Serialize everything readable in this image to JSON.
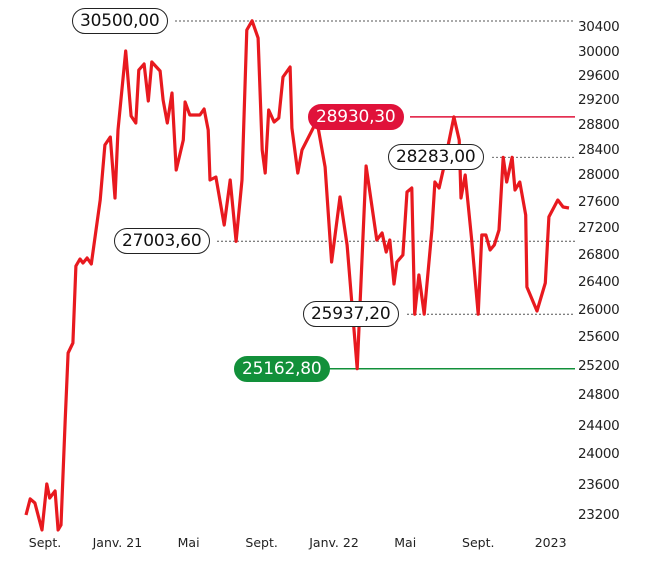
{
  "chart_data": {
    "type": "line",
    "title": "",
    "xlabel": "",
    "ylabel": "",
    "ylim": [
      23200,
      30400
    ],
    "y_ticks": [
      "30400",
      "30000",
      "29600",
      "29200",
      "28800",
      "28400",
      "28000",
      "27600",
      "27200",
      "26800",
      "26400",
      "26000",
      "25600",
      "25200",
      "24800",
      "24400",
      "24000",
      "23600",
      "23200"
    ],
    "x_ticks": [
      {
        "label": "Sept.",
        "date": "2020-09-01"
      },
      {
        "label": "Janv. 21",
        "date": "2021-01-01"
      },
      {
        "label": "Mai",
        "date": "2021-05-01"
      },
      {
        "label": "Sept.",
        "date": "2021-09-01"
      },
      {
        "label": "Janv. 22",
        "date": "2022-01-01"
      },
      {
        "label": "Mai",
        "date": "2022-05-01"
      },
      {
        "label": "Sept.",
        "date": "2022-09-01"
      },
      {
        "label": "2023",
        "date": "2023-01-01"
      }
    ],
    "grid": false,
    "line_color": "#e8191f",
    "series": [
      {
        "points": [
          [
            "2020-07-31",
            23200
          ],
          [
            "2020-08-07",
            23414
          ],
          [
            "2020-08-15",
            23360
          ],
          [
            "2020-08-27",
            23000
          ],
          [
            "2020-09-04",
            23613
          ],
          [
            "2020-09-09",
            23427
          ],
          [
            "2020-09-18",
            23520
          ],
          [
            "2020-09-23",
            23000
          ],
          [
            "2020-09-28",
            23067
          ],
          [
            "2020-10-05",
            24477
          ],
          [
            "2020-10-10",
            25379
          ],
          [
            "2020-10-18",
            25517
          ],
          [
            "2020-10-23",
            26637
          ],
          [
            "2020-10-30",
            26741
          ],
          [
            "2020-11-04",
            26681
          ],
          [
            "2020-11-11",
            26756
          ],
          [
            "2020-11-18",
            26667
          ],
          [
            "2020-12-03",
            27630
          ],
          [
            "2020-12-11",
            28480
          ],
          [
            "2020-12-20",
            28608
          ],
          [
            "2020-12-28",
            27659
          ],
          [
            "2021-01-02",
            28720
          ],
          [
            "2021-01-15",
            30016
          ],
          [
            "2021-01-24",
            28944
          ],
          [
            "2021-02-01",
            28832
          ],
          [
            "2021-02-06",
            29700
          ],
          [
            "2021-02-15",
            29800
          ],
          [
            "2021-02-22",
            29184
          ],
          [
            "2021-02-28",
            29833
          ],
          [
            "2021-03-14",
            29683
          ],
          [
            "2021-03-19",
            29200
          ],
          [
            "2021-03-26",
            28832
          ],
          [
            "2021-04-03",
            29317
          ],
          [
            "2021-04-10",
            28080
          ],
          [
            "2021-04-22",
            28560
          ],
          [
            "2021-04-25",
            29168
          ],
          [
            "2021-05-03",
            28960
          ],
          [
            "2021-05-20",
            28960
          ],
          [
            "2021-05-27",
            29056
          ],
          [
            "2021-06-03",
            28720
          ],
          [
            "2021-06-06",
            27926
          ],
          [
            "2021-06-16",
            27970
          ],
          [
            "2021-06-30",
            27246
          ],
          [
            "2021-07-10",
            27926
          ],
          [
            "2021-07-20",
            27003.6
          ],
          [
            "2021-07-30",
            27926
          ],
          [
            "2021-08-07",
            30352
          ],
          [
            "2021-08-16",
            30500
          ],
          [
            "2021-08-26",
            30224
          ],
          [
            "2021-09-02",
            28400
          ],
          [
            "2021-09-07",
            28032
          ],
          [
            "2021-09-13",
            29040
          ],
          [
            "2021-09-22",
            28848
          ],
          [
            "2021-09-30",
            28912
          ],
          [
            "2021-10-07",
            29583
          ],
          [
            "2021-10-19",
            29750
          ],
          [
            "2021-10-22",
            28752
          ],
          [
            "2021-11-01",
            28032
          ],
          [
            "2021-11-08",
            28400
          ],
          [
            "2021-11-27",
            28752
          ],
          [
            "2021-12-02",
            28930.3
          ],
          [
            "2021-12-17",
            28128
          ],
          [
            "2021-12-28",
            26696
          ],
          [
            "2022-01-11",
            27674
          ],
          [
            "2022-01-23",
            26948
          ],
          [
            "2022-02-09",
            25162.8
          ],
          [
            "2022-02-24",
            28144
          ],
          [
            "2022-03-14",
            27022
          ],
          [
            "2022-03-23",
            27126
          ],
          [
            "2022-03-30",
            26844
          ],
          [
            "2022-04-05",
            27022
          ],
          [
            "2022-04-12",
            26371
          ],
          [
            "2022-04-17",
            26696
          ],
          [
            "2022-04-27",
            26800
          ],
          [
            "2022-05-04",
            27748
          ],
          [
            "2022-05-12",
            27807
          ],
          [
            "2022-05-17",
            25937.2
          ],
          [
            "2022-05-24",
            26504
          ],
          [
            "2022-06-02",
            25937.2
          ],
          [
            "2022-06-15",
            27170
          ],
          [
            "2022-06-20",
            27896
          ],
          [
            "2022-06-27",
            27807
          ],
          [
            "2022-07-04",
            28080
          ],
          [
            "2022-07-12",
            28464
          ],
          [
            "2022-07-22",
            28930.3
          ],
          [
            "2022-07-31",
            28560
          ],
          [
            "2022-08-03",
            27659
          ],
          [
            "2022-08-10",
            28000
          ],
          [
            "2022-08-21",
            27022
          ],
          [
            "2022-09-01",
            25937.2
          ],
          [
            "2022-09-07",
            27096
          ],
          [
            "2022-09-14",
            27096
          ],
          [
            "2022-09-21",
            26874
          ],
          [
            "2022-09-28",
            26948
          ],
          [
            "2022-10-06",
            27170
          ],
          [
            "2022-10-13",
            28283
          ],
          [
            "2022-10-19",
            27896
          ],
          [
            "2022-10-28",
            28283
          ],
          [
            "2022-11-02",
            27778
          ],
          [
            "2022-11-10",
            27896
          ],
          [
            "2022-11-20",
            27400
          ],
          [
            "2022-11-22",
            26328
          ],
          [
            "2022-12-09",
            25985
          ],
          [
            "2022-12-23",
            26386
          ],
          [
            "2022-12-29",
            27370
          ],
          [
            "2023-01-13",
            27630
          ],
          [
            "2023-01-22",
            27523
          ],
          [
            "2023-02-01",
            27508
          ]
        ]
      }
    ],
    "annotations": [
      {
        "label": "30500,00",
        "value": 30500,
        "style": "plain"
      },
      {
        "label": "28930,30",
        "value": 28930.3,
        "style": "high",
        "color": "#e0123a"
      },
      {
        "label": "28283,00",
        "value": 28283,
        "style": "plain"
      },
      {
        "label": "27003,60",
        "value": 27003.6,
        "style": "plain"
      },
      {
        "label": "25937,20",
        "value": 25937.2,
        "style": "plain"
      },
      {
        "label": "25162,80",
        "value": 25162.8,
        "style": "low",
        "color": "#12903a"
      }
    ]
  }
}
